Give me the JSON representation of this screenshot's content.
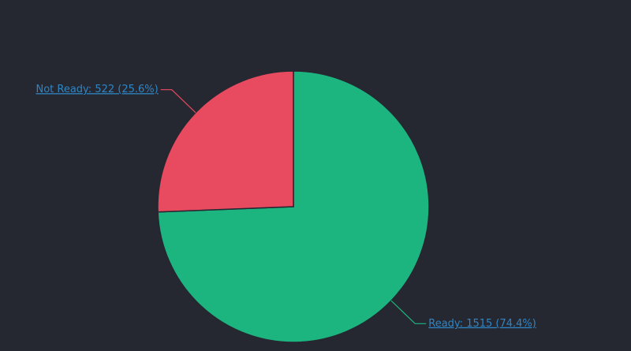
{
  "chart_data": {
    "type": "pie",
    "categories": [
      "Ready",
      "Not Ready"
    ],
    "values": [
      1515,
      522
    ],
    "value_labels": [
      "Ready: 1515 (74.4%)",
      "Not Ready: 522 (25.6%)"
    ],
    "colors": [
      "#1db57f",
      "#e84a5f"
    ]
  }
}
